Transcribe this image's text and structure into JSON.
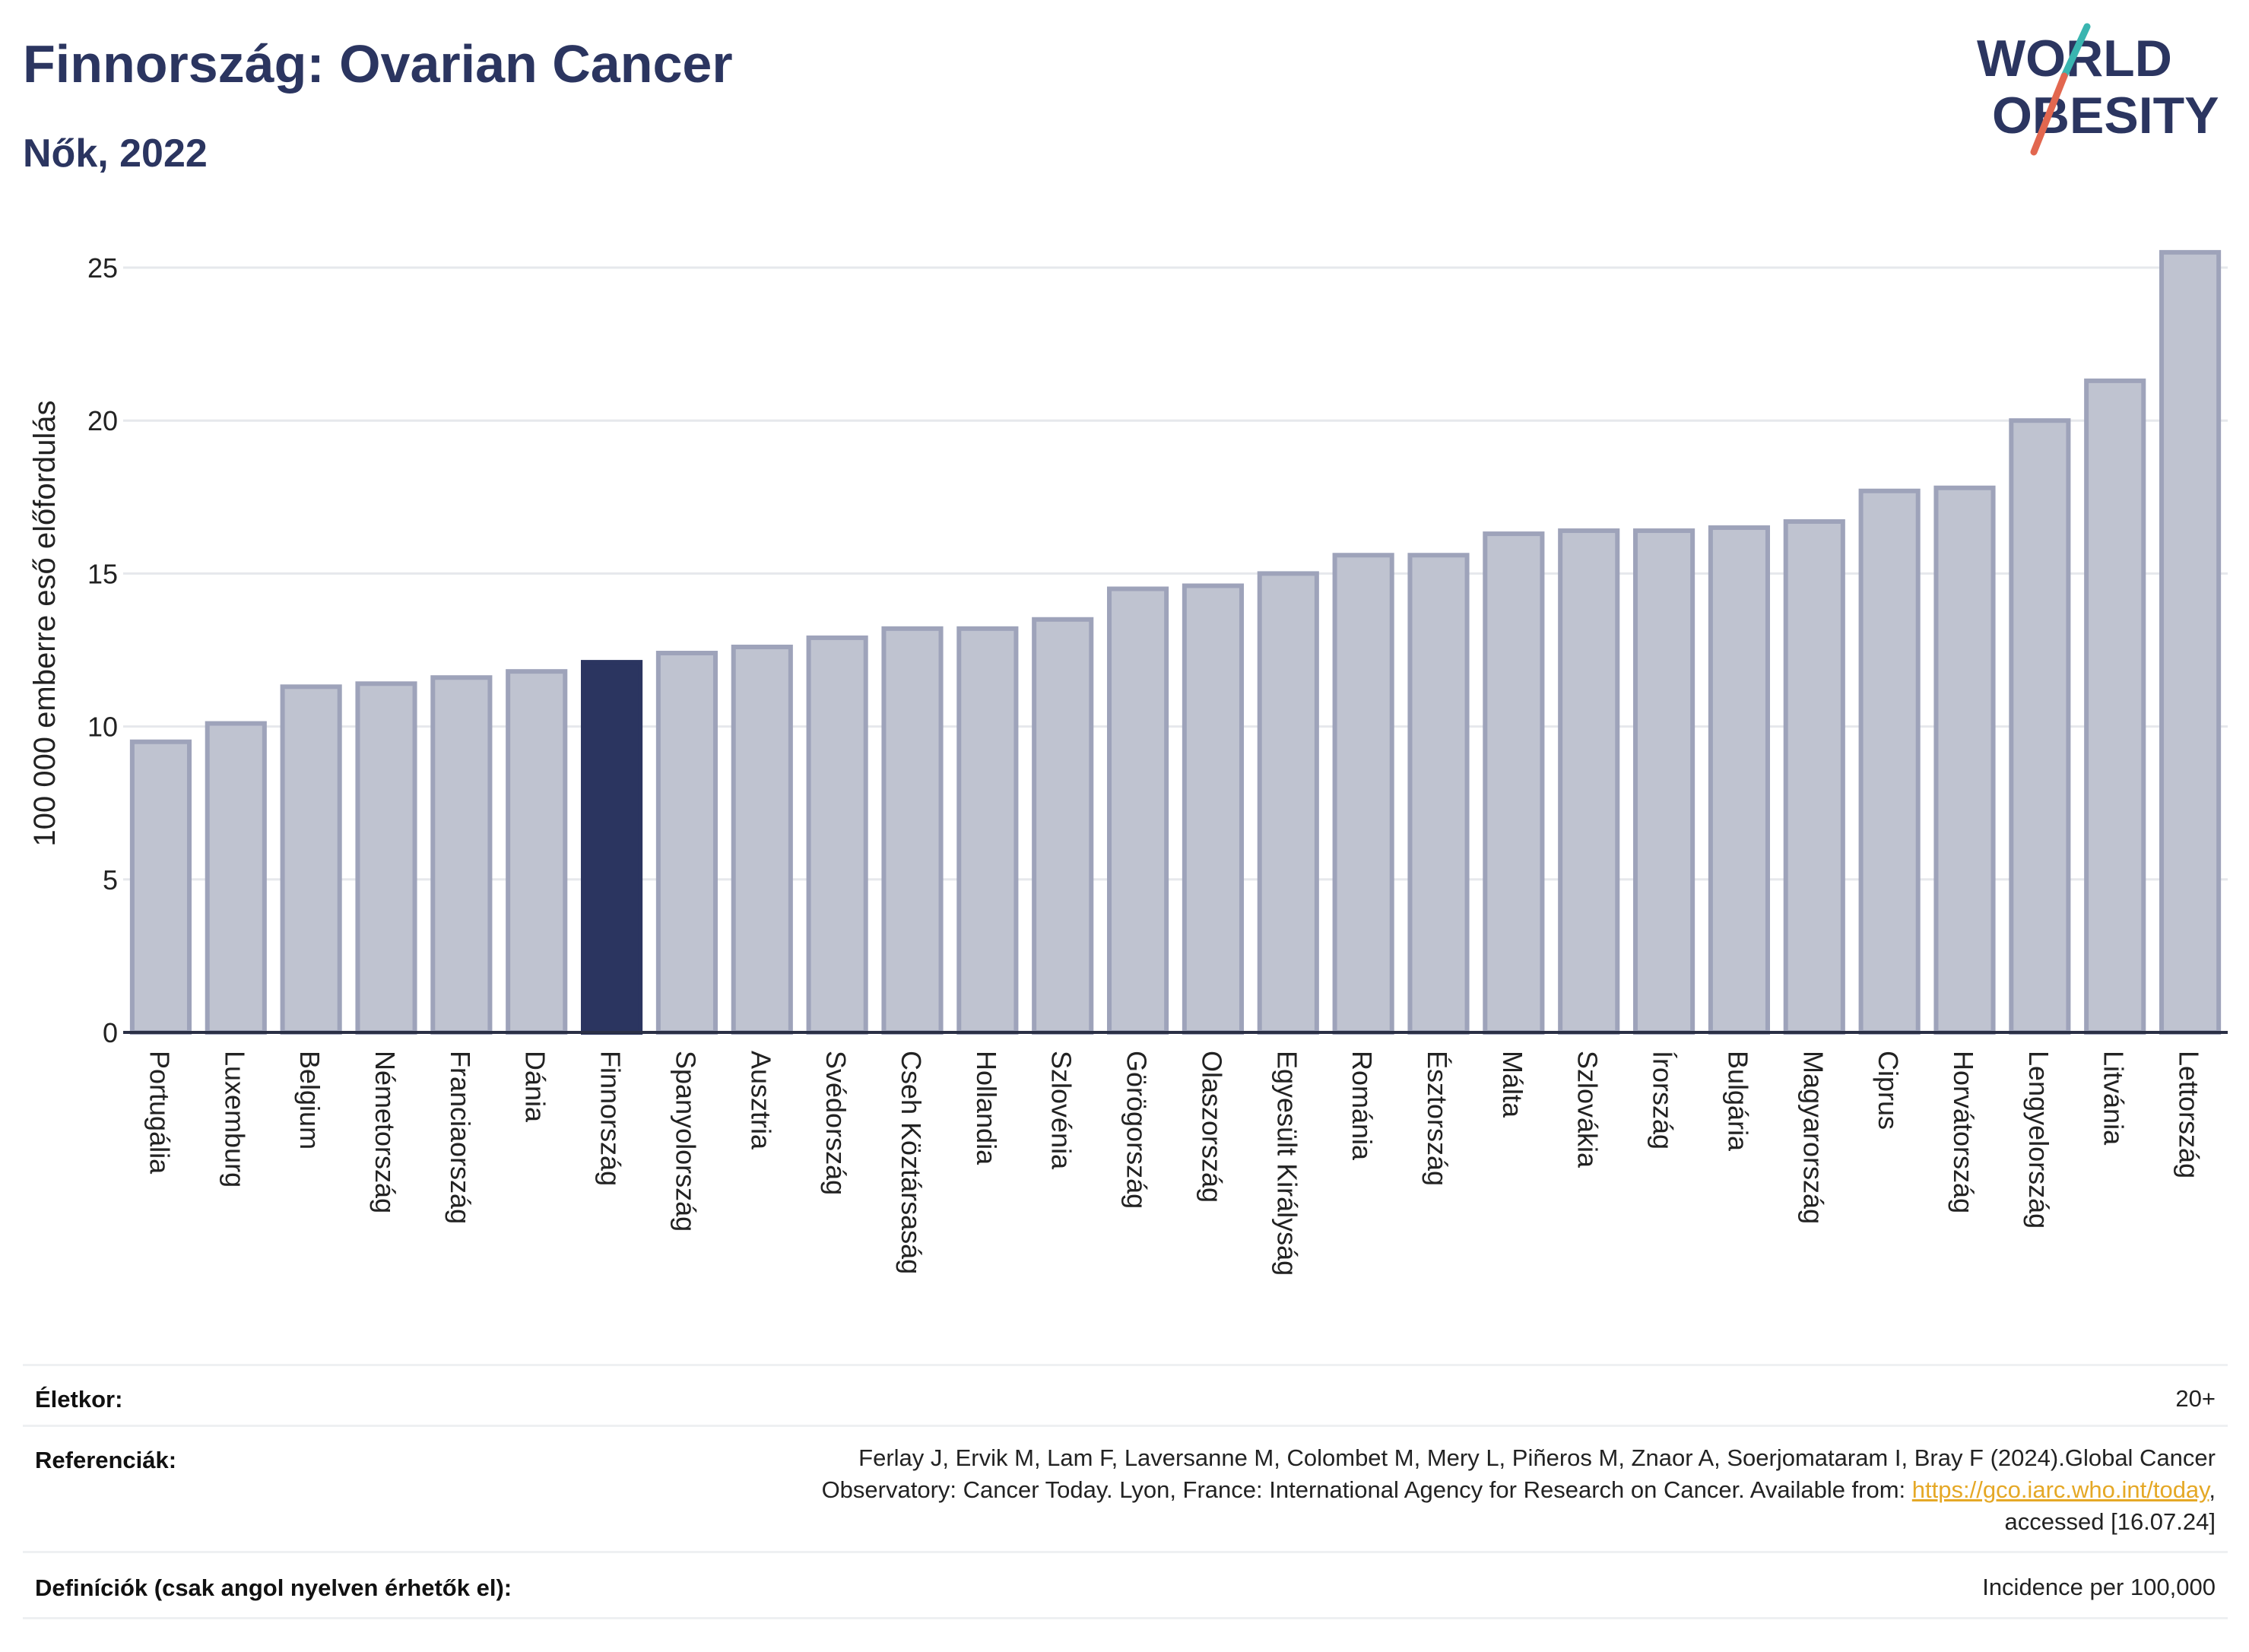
{
  "header": {
    "title": "Finnország: Ovarian Cancer",
    "subtitle": "Nők, 2022"
  },
  "logo": {
    "line1": "WORLD",
    "line2": "OBESITY",
    "colors": {
      "text": "#2b3560",
      "slash_top": "#3ab5b0",
      "slash_bottom": "#e2674f"
    }
  },
  "chart_data": {
    "type": "bar",
    "ylabel": "100 000 emberre eső előfordulás",
    "xlabel": "",
    "ylim": [
      0,
      26
    ],
    "yticks": [
      0,
      5,
      10,
      15,
      20,
      25
    ],
    "grid": true,
    "highlight": "Finnország",
    "colors": {
      "bar": "#bfc3d0",
      "bar_edge": "#9ea3ba",
      "highlight": "#2b3560"
    },
    "categories": [
      "Portugália",
      "Luxemburg",
      "Belgium",
      "Németország",
      "Franciaország",
      "Dánia",
      "Finnország",
      "Spanyolország",
      "Ausztria",
      "Svédország",
      "Cseh Köztársaság",
      "Hollandia",
      "Szlovénia",
      "Görögország",
      "Olaszország",
      "Egyesült Királyság",
      "Románia",
      "Észtország",
      "Málta",
      "Szlovákia",
      "Írország",
      "Bulgária",
      "Magyarország",
      "Ciprus",
      "Horvátország",
      "Lengyelország",
      "Litvánia",
      "Lettország"
    ],
    "values": [
      9.5,
      10.1,
      11.3,
      11.4,
      11.6,
      11.8,
      12.1,
      12.4,
      12.6,
      12.9,
      13.2,
      13.2,
      13.5,
      14.5,
      14.6,
      15.0,
      15.6,
      15.6,
      16.3,
      16.4,
      16.4,
      16.5,
      16.7,
      17.7,
      17.8,
      20.0,
      21.3,
      25.5
    ]
  },
  "info": {
    "age_label": "Életkor:",
    "age_value": "20+",
    "ref_label": "Referenciák:",
    "ref_line1": "Ferlay J, Ervik M, Lam F, Laversanne M, Colombet M, Mery L, Piñeros M, Znaor A, Soerjomataram I, Bray F (2024).Global Cancer",
    "ref_line2_pre": "Observatory: Cancer Today. Lyon, France: International Agency for Research on Cancer. Available from: ",
    "ref_link": "https://gco.iarc.who.int/today",
    "ref_line2_post": ",",
    "ref_line3": "accessed [16.07.24]",
    "def_label": "Definíciók (csak angol nyelven érhetők el):",
    "def_value": "Incidence per 100,000"
  }
}
